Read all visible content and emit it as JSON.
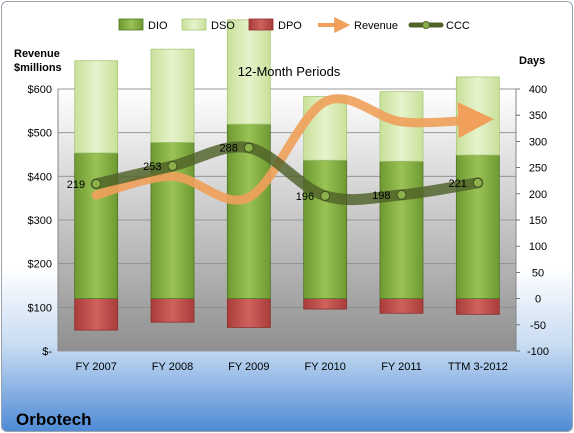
{
  "chart_data": {
    "type": "bar",
    "title": "12-Month Periods",
    "company": "Orbotech",
    "y_left_label_line1": "Revenue",
    "y_left_label_line2": "$millions",
    "y_right_label": "Days",
    "categories": [
      "FY 2007",
      "FY 2008",
      "FY 2009",
      "FY 2010",
      "FY 2011",
      "TTM 3-2012"
    ],
    "left_axis": {
      "min": 0,
      "max": 600,
      "step": 100,
      "tick_labels": [
        "$-",
        "$100",
        "$200",
        "$300",
        "$400",
        "$500",
        "$600"
      ]
    },
    "right_axis": {
      "min": -100,
      "max": 400,
      "step": 50,
      "tick_labels": [
        "-100",
        "-50",
        "0",
        "50",
        "100",
        "150",
        "200",
        "250",
        "300",
        "350",
        "400"
      ]
    },
    "series": [
      {
        "name": "DIO",
        "kind": "stacked-bar",
        "axis": "right",
        "values": [
          278,
          298,
          333,
          264,
          262,
          274
        ]
      },
      {
        "name": "DSO",
        "kind": "stacked-bar",
        "axis": "right",
        "values": [
          176,
          178,
          199,
          122,
          133,
          149
        ]
      },
      {
        "name": "DPO",
        "kind": "negative-bar",
        "axis": "right",
        "values": [
          -60,
          -45,
          -55,
          -20,
          -28,
          -30
        ]
      },
      {
        "name": "Revenue",
        "kind": "line",
        "axis": "left",
        "values": [
          357,
          400,
          352,
          571,
          525,
          530
        ]
      },
      {
        "name": "CCC",
        "kind": "line",
        "axis": "right",
        "values": [
          219,
          253,
          288,
          196,
          198,
          221
        ]
      }
    ],
    "ccc_labels": [
      "219",
      "253",
      "288",
      "196",
      "198",
      "221"
    ],
    "colors": {
      "dio": "#7fa83c",
      "dio_dark": "#4f7322",
      "dso": "#d4e8a8",
      "dso_dark": "#a8c878",
      "dpo": "#c0504d",
      "dpo_dark": "#8e2f2c",
      "revenue": "#f0a05a",
      "ccc": "#4f6228",
      "plot_top": "#ffffff",
      "plot_bottom": "#8c8c8c"
    },
    "grid": true,
    "legend_position": "top"
  }
}
